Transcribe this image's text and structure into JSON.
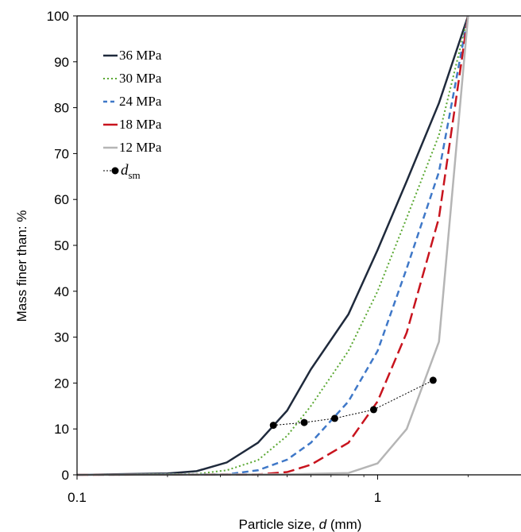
{
  "chart_data": {
    "type": "line",
    "xscale": "log",
    "xlim": [
      0.1,
      3
    ],
    "ylim": [
      0,
      100
    ],
    "yticks": [
      0,
      10,
      20,
      30,
      40,
      50,
      60,
      70,
      80,
      90,
      100
    ],
    "xticks": [
      {
        "value": 0.1,
        "label": "0.1"
      },
      {
        "value": 1,
        "label": "1"
      }
    ],
    "ylabel": "Mass finer than: %",
    "xlabel_prefix": "Particle size, ",
    "xlabel_var": "d",
    "xlabel_suffix": " (mm)",
    "grid": false,
    "legend_position": "top-left",
    "series": [
      {
        "name": "36 MPa",
        "color": "#1f2a3c",
        "style": "solid",
        "x": [
          0.1,
          0.2,
          0.25,
          0.315,
          0.4,
          0.5,
          0.6,
          0.8,
          1.0,
          1.25,
          1.6,
          2.0
        ],
        "y": [
          0,
          0.3,
          0.8,
          2.7,
          7,
          14,
          23,
          35,
          49,
          64,
          81,
          100
        ]
      },
      {
        "name": "30 MPa",
        "color": "#5aa832",
        "style": "dotted",
        "x": [
          0.1,
          0.25,
          0.315,
          0.4,
          0.5,
          0.6,
          0.8,
          1.0,
          1.25,
          1.6,
          2.0
        ],
        "y": [
          0,
          0.2,
          1,
          3.2,
          8.5,
          15,
          27,
          40,
          56,
          74,
          100
        ]
      },
      {
        "name": "24 MPa",
        "color": "#3f78c8",
        "style": "dashed",
        "x": [
          0.1,
          0.315,
          0.4,
          0.5,
          0.6,
          0.8,
          1.0,
          1.25,
          1.6,
          2.0
        ],
        "y": [
          0,
          0.1,
          1,
          3.3,
          7,
          16,
          27,
          45,
          66,
          100
        ]
      },
      {
        "name": "18 MPa",
        "color": "#c8141e",
        "style": "longdash",
        "x": [
          0.1,
          0.4,
          0.5,
          0.6,
          0.8,
          1.0,
          1.25,
          1.6,
          2.0
        ],
        "y": [
          0,
          0.1,
          0.6,
          2.2,
          7,
          16,
          31,
          56,
          100
        ]
      },
      {
        "name": "12 MPa",
        "color": "#b5b5b5",
        "style": "solid",
        "x": [
          0.1,
          0.5,
          0.8,
          1.0,
          1.25,
          1.6,
          2.0
        ],
        "y": [
          0,
          0.1,
          0.4,
          2.5,
          10,
          29,
          100
        ]
      }
    ],
    "dsm": {
      "label_var": "d",
      "label_sub": "sm",
      "color": "#000000",
      "x": [
        0.45,
        0.57,
        0.72,
        0.97,
        1.53
      ],
      "y": [
        10.8,
        11.4,
        12.3,
        14.2,
        20.6
      ]
    }
  }
}
